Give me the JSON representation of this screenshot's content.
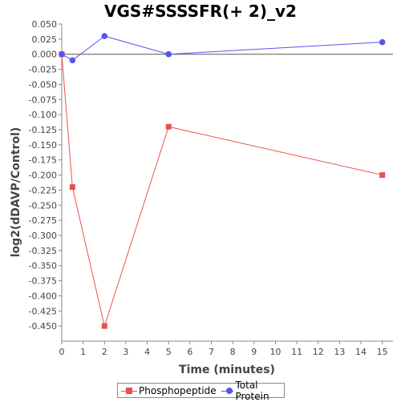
{
  "chart_data": {
    "type": "line",
    "title": "VGS#SSSSFR(+ 2)_v2",
    "xlabel": "Time (minutes)",
    "ylabel": "log2(dDAVP/Control)",
    "xlim": [
      0,
      15.5
    ],
    "ylim": [
      -0.475,
      0.05
    ],
    "x_ticks": [
      "0",
      "1",
      "2",
      "3",
      "4",
      "5",
      "6",
      "7",
      "8",
      "9",
      "10",
      "11",
      "12",
      "13",
      "14",
      "15"
    ],
    "y_ticks": [
      "0.050",
      "0.025",
      "0.000",
      "-0.025",
      "-0.050",
      "-0.075",
      "-0.100",
      "-0.125",
      "-0.150",
      "-0.175",
      "-0.200",
      "-0.225",
      "-0.250",
      "-0.275",
      "-0.300",
      "-0.325",
      "-0.350",
      "-0.375",
      "-0.400",
      "-0.425",
      "-0.450"
    ],
    "grid": false,
    "zero_line": true,
    "legend_position": "bottom",
    "series": [
      {
        "name": "Phosphopeptide",
        "color": "#e8524f",
        "marker": "square",
        "x": [
          0,
          0.5,
          2,
          5,
          15
        ],
        "y": [
          0.0,
          -0.22,
          -0.45,
          -0.12,
          -0.2
        ]
      },
      {
        "name": "Total Protein",
        "color": "#5555ee",
        "marker": "circle",
        "x": [
          0,
          0.5,
          2,
          5,
          15
        ],
        "y": [
          0.0,
          -0.01,
          0.03,
          0.0,
          0.02
        ]
      }
    ]
  }
}
